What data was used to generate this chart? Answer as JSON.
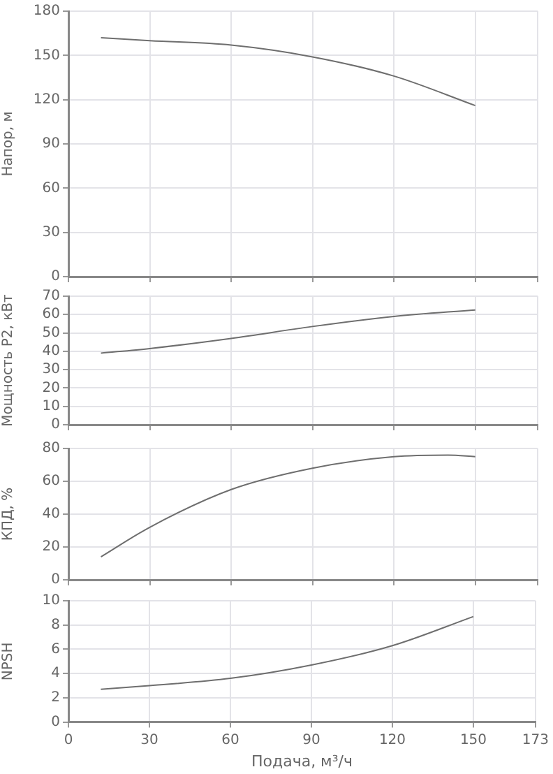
{
  "chart_data": [
    {
      "type": "line",
      "ylabel": "Напор, м",
      "x": [
        12,
        30,
        60,
        90,
        120,
        150
      ],
      "series": [
        {
          "color": "#6e6e6e",
          "values": [
            162,
            160,
            157,
            149,
            136,
            116
          ]
        }
      ],
      "xlim": [
        0,
        173
      ],
      "xticks": [
        0,
        30,
        60,
        90,
        120,
        150,
        173
      ],
      "ylim": [
        0,
        180
      ],
      "yticks": [
        0,
        30,
        60,
        90,
        120,
        150,
        180
      ],
      "grid": true,
      "tick_labels": "y",
      "marker": "none",
      "legend": false
    },
    {
      "type": "line",
      "ylabel": "Мощность P2, кВт",
      "x": [
        12,
        30,
        60,
        90,
        120,
        150
      ],
      "series": [
        {
          "color": "#6e6e6e",
          "values": [
            39,
            41.5,
            47,
            53.5,
            59,
            62.5
          ]
        }
      ],
      "xlim": [
        0,
        173
      ],
      "xticks": [
        0,
        30,
        60,
        90,
        120,
        150,
        173
      ],
      "ylim": [
        0,
        70
      ],
      "yticks": [
        0,
        10,
        20,
        30,
        40,
        50,
        60,
        70
      ],
      "grid": true,
      "tick_labels": "y",
      "marker": "none",
      "legend": false
    },
    {
      "type": "line",
      "ylabel": "КПД, %",
      "x": [
        12,
        30,
        60,
        90,
        120,
        140,
        150
      ],
      "series": [
        {
          "color": "#6e6e6e",
          "values": [
            14,
            32,
            55,
            68,
            75,
            76,
            75
          ]
        }
      ],
      "xlim": [
        0,
        173
      ],
      "xticks": [
        0,
        30,
        60,
        90,
        120,
        150,
        173
      ],
      "ylim": [
        0,
        80
      ],
      "yticks": [
        0,
        20,
        40,
        60,
        80
      ],
      "grid": true,
      "tick_labels": "y",
      "marker": "none",
      "legend": false
    },
    {
      "type": "line",
      "ylabel": "NPSH",
      "xlabel": "Подача, м³/ч",
      "x": [
        12,
        30,
        60,
        90,
        120,
        150
      ],
      "series": [
        {
          "color": "#6e6e6e",
          "values": [
            2.7,
            3.0,
            3.6,
            4.7,
            6.3,
            8.7
          ]
        }
      ],
      "xlim": [
        0,
        173
      ],
      "xticks": [
        0,
        30,
        60,
        90,
        120,
        150,
        173
      ],
      "ylim": [
        0,
        10
      ],
      "yticks": [
        0,
        2,
        4,
        6,
        8,
        10
      ],
      "grid": true,
      "marker": "none",
      "legend": false
    }
  ]
}
